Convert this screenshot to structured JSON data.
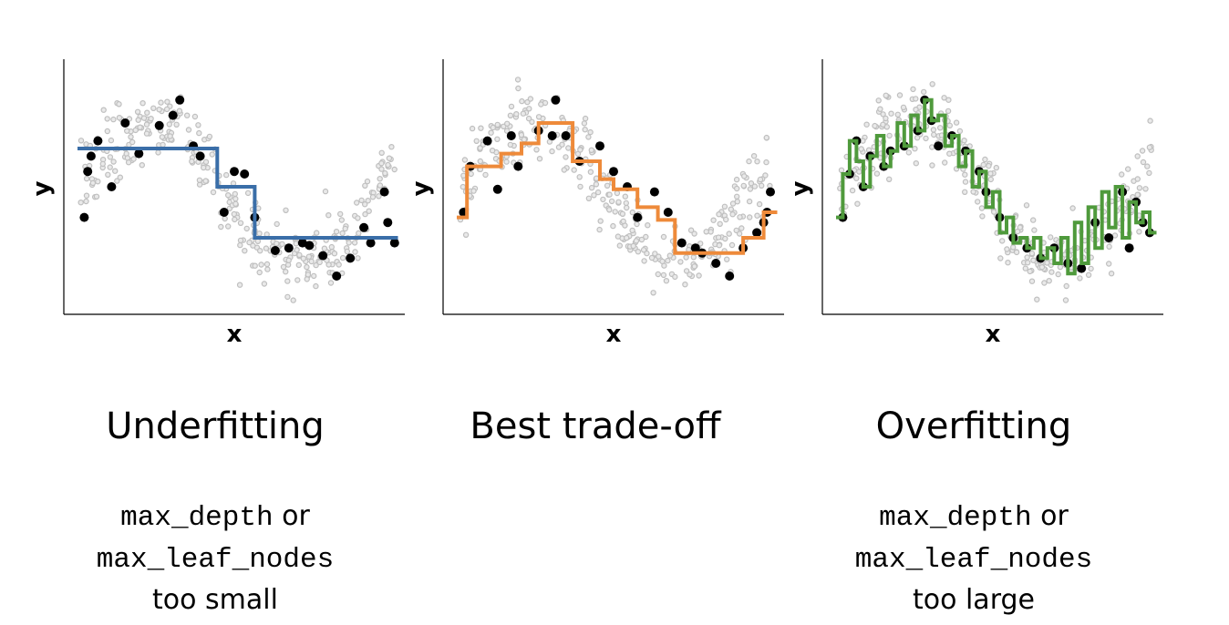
{
  "panels": [
    {
      "title": "Underfitting",
      "line1_code": "max_depth",
      "line1_text": " or",
      "line2_code": "max_leaf_nodes",
      "line3_text": "too small"
    },
    {
      "title": "Best trade-off",
      "line1_code": "",
      "line1_text": "",
      "line2_code": "",
      "line3_text": ""
    },
    {
      "title": "Overfitting",
      "line1_code": "max_depth",
      "line1_text": " or",
      "line2_code": "max_leaf_nodes",
      "line3_text": "too large"
    }
  ],
  "chart_data": [
    {
      "type": "scatter+step",
      "xlabel": "x",
      "ylabel": "y",
      "xlim": [
        0,
        1
      ],
      "ylim": [
        0,
        1
      ],
      "line_color": "#3a6ea8",
      "step_x": [
        0.04,
        0.45,
        0.45,
        0.56,
        0.56,
        0.98
      ],
      "step_y": [
        0.65,
        0.65,
        0.5,
        0.5,
        0.3,
        0.3
      ],
      "train_points": {
        "x": [
          0.06,
          0.07,
          0.08,
          0.1,
          0.14,
          0.18,
          0.22,
          0.28,
          0.32,
          0.34,
          0.38,
          0.4,
          0.47,
          0.5,
          0.53,
          0.56,
          0.62,
          0.66,
          0.7,
          0.72,
          0.76,
          0.8,
          0.84,
          0.88,
          0.9,
          0.94,
          0.95,
          0.97
        ],
        "y": [
          0.38,
          0.56,
          0.62,
          0.68,
          0.5,
          0.75,
          0.63,
          0.74,
          0.78,
          0.84,
          0.66,
          0.62,
          0.4,
          0.56,
          0.55,
          0.38,
          0.25,
          0.26,
          0.28,
          0.27,
          0.23,
          0.15,
          0.22,
          0.34,
          0.28,
          0.48,
          0.36,
          0.28
        ]
      }
    },
    {
      "type": "scatter+step",
      "xlabel": "x",
      "ylabel": "y",
      "xlim": [
        0,
        1
      ],
      "ylim": [
        0,
        1
      ],
      "line_color": "#ee8a3a",
      "step_x": [
        0.04,
        0.07,
        0.07,
        0.17,
        0.17,
        0.23,
        0.23,
        0.28,
        0.28,
        0.38,
        0.38,
        0.46,
        0.46,
        0.5,
        0.5,
        0.57,
        0.57,
        0.63,
        0.63,
        0.68,
        0.68,
        0.88,
        0.88,
        0.94,
        0.94,
        0.98
      ],
      "step_y": [
        0.38,
        0.38,
        0.58,
        0.58,
        0.63,
        0.63,
        0.67,
        0.67,
        0.75,
        0.75,
        0.6,
        0.6,
        0.53,
        0.53,
        0.49,
        0.49,
        0.42,
        0.42,
        0.37,
        0.37,
        0.24,
        0.24,
        0.3,
        0.3,
        0.4,
        0.4
      ],
      "train_points": {
        "x": [
          0.06,
          0.08,
          0.13,
          0.16,
          0.2,
          0.22,
          0.28,
          0.32,
          0.33,
          0.36,
          0.4,
          0.46,
          0.5,
          0.54,
          0.57,
          0.62,
          0.66,
          0.7,
          0.74,
          0.76,
          0.8,
          0.84,
          0.88,
          0.92,
          0.94,
          0.95,
          0.96
        ],
        "y": [
          0.4,
          0.58,
          0.68,
          0.49,
          0.7,
          0.58,
          0.72,
          0.7,
          0.84,
          0.7,
          0.6,
          0.66,
          0.56,
          0.5,
          0.38,
          0.48,
          0.4,
          0.28,
          0.26,
          0.24,
          0.2,
          0.15,
          0.26,
          0.32,
          0.36,
          0.4,
          0.48
        ]
      }
    },
    {
      "type": "scatter+step",
      "xlabel": "x",
      "ylabel": "y",
      "xlim": [
        0,
        1
      ],
      "ylim": [
        0,
        1
      ],
      "line_color": "#4f9a3c",
      "step_x": [
        0.04,
        0.06,
        0.06,
        0.08,
        0.08,
        0.1,
        0.1,
        0.12,
        0.12,
        0.14,
        0.14,
        0.16,
        0.16,
        0.18,
        0.18,
        0.2,
        0.2,
        0.22,
        0.22,
        0.24,
        0.24,
        0.26,
        0.26,
        0.28,
        0.28,
        0.3,
        0.3,
        0.32,
        0.32,
        0.34,
        0.34,
        0.36,
        0.36,
        0.38,
        0.38,
        0.4,
        0.4,
        0.42,
        0.42,
        0.44,
        0.44,
        0.46,
        0.46,
        0.48,
        0.48,
        0.5,
        0.5,
        0.52,
        0.52,
        0.54,
        0.54,
        0.56,
        0.56,
        0.58,
        0.58,
        0.6,
        0.6,
        0.62,
        0.62,
        0.64,
        0.64,
        0.66,
        0.66,
        0.68,
        0.68,
        0.7,
        0.7,
        0.72,
        0.72,
        0.74,
        0.74,
        0.76,
        0.76,
        0.78,
        0.78,
        0.8,
        0.8,
        0.82,
        0.82,
        0.84,
        0.84,
        0.86,
        0.86,
        0.88,
        0.88,
        0.9,
        0.9,
        0.92,
        0.92,
        0.94,
        0.94,
        0.96,
        0.96,
        0.98
      ],
      "step_y": [
        0.38,
        0.38,
        0.55,
        0.55,
        0.68,
        0.68,
        0.6,
        0.6,
        0.5,
        0.5,
        0.62,
        0.62,
        0.7,
        0.7,
        0.58,
        0.58,
        0.64,
        0.64,
        0.75,
        0.75,
        0.66,
        0.66,
        0.78,
        0.78,
        0.72,
        0.72,
        0.84,
        0.84,
        0.76,
        0.76,
        0.78,
        0.78,
        0.66,
        0.66,
        0.7,
        0.7,
        0.58,
        0.58,
        0.64,
        0.64,
        0.5,
        0.5,
        0.56,
        0.56,
        0.42,
        0.42,
        0.48,
        0.48,
        0.32,
        0.32,
        0.38,
        0.38,
        0.28,
        0.28,
        0.3,
        0.3,
        0.26,
        0.26,
        0.3,
        0.3,
        0.22,
        0.22,
        0.26,
        0.26,
        0.2,
        0.2,
        0.3,
        0.3,
        0.16,
        0.16,
        0.36,
        0.36,
        0.2,
        0.2,
        0.42,
        0.42,
        0.26,
        0.26,
        0.48,
        0.48,
        0.34,
        0.34,
        0.5,
        0.5,
        0.3,
        0.3,
        0.44,
        0.44,
        0.36,
        0.36,
        0.4,
        0.4,
        0.32,
        0.32
      ],
      "train_points": {
        "x": [
          0.06,
          0.08,
          0.1,
          0.12,
          0.14,
          0.18,
          0.2,
          0.24,
          0.28,
          0.3,
          0.32,
          0.34,
          0.38,
          0.42,
          0.46,
          0.48,
          0.52,
          0.56,
          0.6,
          0.64,
          0.68,
          0.72,
          0.76,
          0.8,
          0.84,
          0.88,
          0.9,
          0.92,
          0.94,
          0.96
        ],
        "y": [
          0.38,
          0.55,
          0.68,
          0.5,
          0.62,
          0.58,
          0.64,
          0.66,
          0.72,
          0.84,
          0.76,
          0.66,
          0.7,
          0.64,
          0.56,
          0.48,
          0.38,
          0.3,
          0.26,
          0.22,
          0.26,
          0.2,
          0.18,
          0.36,
          0.3,
          0.48,
          0.26,
          0.44,
          0.36,
          0.32
        ]
      }
    }
  ],
  "test_points_color": "#bfbfbf",
  "train_points_color": "#000000"
}
